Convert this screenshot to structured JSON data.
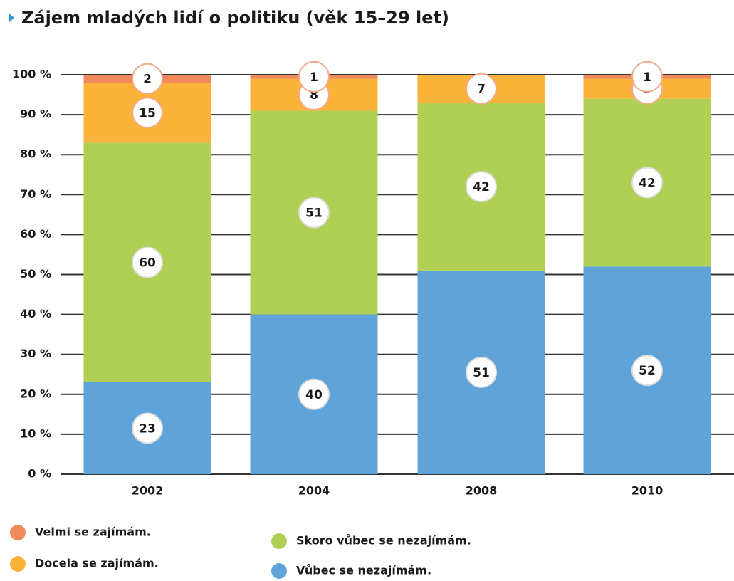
{
  "chart_data": {
    "type": "stacked_bar",
    "title": "Zájem mladých lidí o politiku (věk 15–29 let)",
    "categories": [
      "2002",
      "2004",
      "2008",
      "2010"
    ],
    "series": [
      {
        "name": "Vůbec se nezajímám.",
        "color": "#5fa3d8",
        "values": [
          23,
          40,
          51,
          52
        ]
      },
      {
        "name": "Skoro vůbec se nezajímám.",
        "color": "#b0d055",
        "values": [
          60,
          51,
          42,
          42
        ]
      },
      {
        "name": "Docela se zajímám.",
        "color": "#fbb33a",
        "values": [
          15,
          8,
          7,
          5
        ]
      },
      {
        "name": "Velmi se zajímám.",
        "color": "#f08a5d",
        "values": [
          2,
          1,
          null,
          1
        ]
      }
    ],
    "ylim": [
      0,
      100
    ],
    "yticks": [
      {
        "value": 0,
        "label": "0 %"
      },
      {
        "value": 10,
        "label": "10 %"
      },
      {
        "value": 20,
        "label": "20 %"
      },
      {
        "value": 30,
        "label": "30 %"
      },
      {
        "value": 40,
        "label": "40 %"
      },
      {
        "value": 50,
        "label": "50 %"
      },
      {
        "value": 60,
        "label": "60 %"
      },
      {
        "value": 70,
        "label": "70 %"
      },
      {
        "value": 80,
        "label": "80 %"
      },
      {
        "value": 90,
        "label": "90 %"
      },
      {
        "value": 100,
        "label": "100 %"
      }
    ],
    "grid": true
  }
}
